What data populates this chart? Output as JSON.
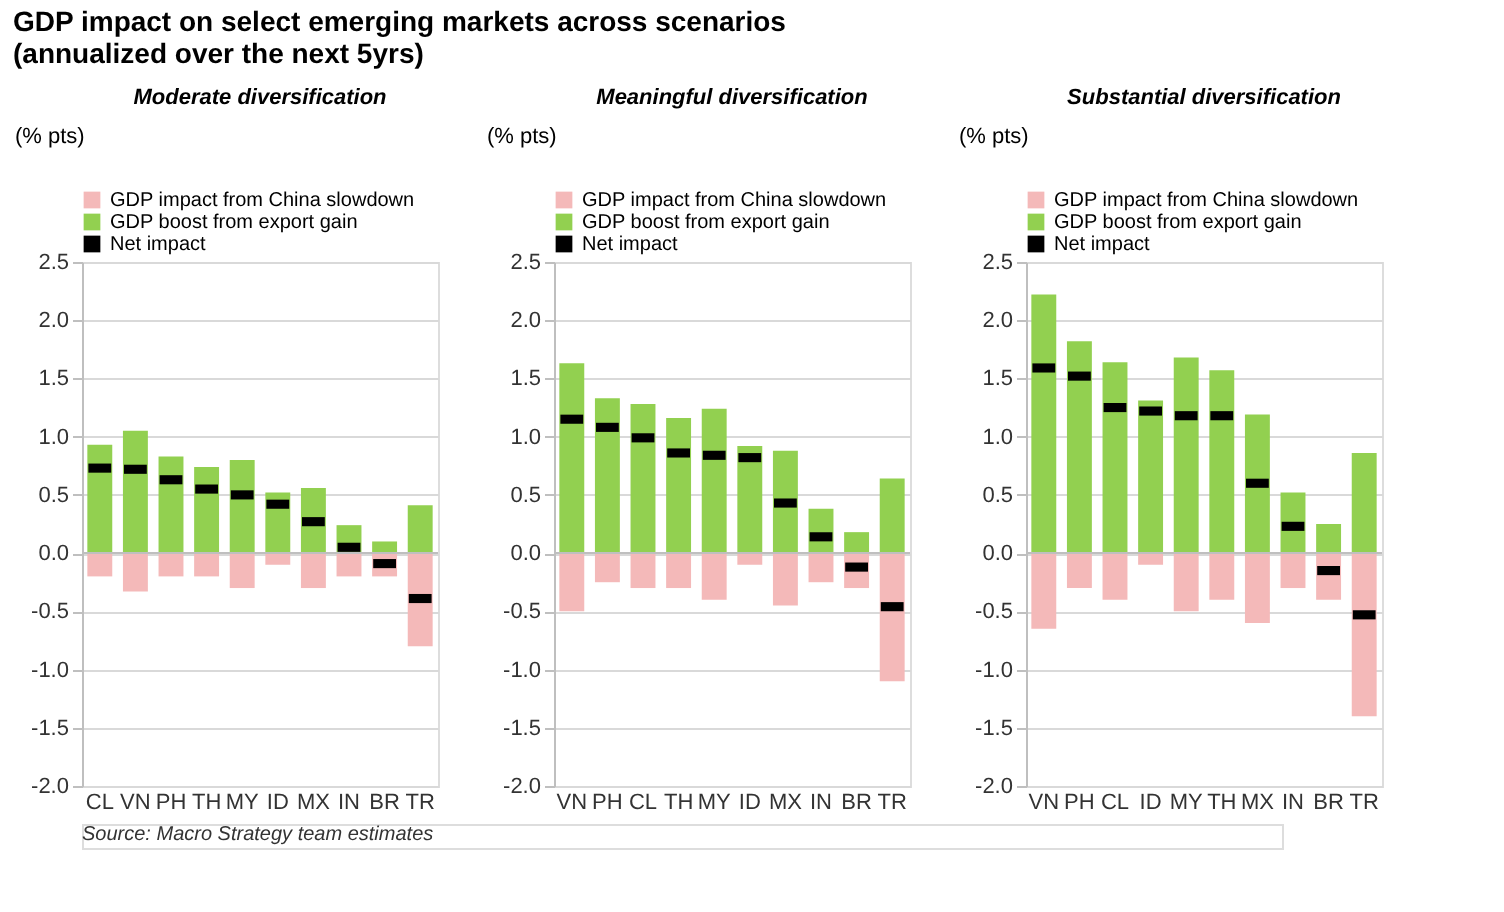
{
  "chart_data": [
    {
      "type": "bar",
      "title": "GDP impact on select emerging markets across scenarios\n(annualized over the next 5yrs)",
      "subtitle": "Moderate diversification",
      "ylabel": "(% pts)",
      "stacked": true,
      "legend": "top",
      "grid": "y",
      "categories": [
        "CL",
        "VN",
        "PH",
        "TH",
        "MY",
        "ID",
        "MX",
        "IN",
        "BR",
        "TR"
      ],
      "ylim": [
        -2.0,
        2.5
      ],
      "yticks": [
        {
          "value": -2,
          "label": "-2.0"
        },
        {
          "value": -1.5,
          "label": "-1.5"
        },
        {
          "value": -1,
          "label": "-1.0"
        },
        {
          "value": -0.5,
          "label": "-0.5"
        },
        {
          "value": 0,
          "label": "0.0"
        },
        {
          "value": 0.5,
          "label": "0.5"
        },
        {
          "value": 1,
          "label": "1.0"
        },
        {
          "value": 1.5,
          "label": "1.5"
        },
        {
          "value": 2,
          "label": "2.0"
        },
        {
          "value": 2.5,
          "label": "2.5"
        }
      ],
      "series": [
        {
          "name": "GDP impact from China slowdown",
          "color": "#f4b9b9",
          "values": [
            -0.2,
            -0.33,
            -0.2,
            -0.2,
            -0.3,
            -0.1,
            -0.3,
            -0.2,
            -0.2,
            -0.8
          ]
        },
        {
          "name": "GDP boost from export gain",
          "color": "#92d050",
          "values": [
            0.93,
            1.05,
            0.83,
            0.74,
            0.8,
            0.52,
            0.56,
            0.24,
            0.1,
            0.41
          ]
        },
        {
          "name": "Net impact",
          "type": "scatter",
          "color": "#000000",
          "values": [
            0.73,
            0.72,
            0.63,
            0.55,
            0.5,
            0.42,
            0.27,
            0.05,
            -0.09,
            -0.39
          ]
        }
      ],
      "annotations": [
        "Source: Macro Strategy team estimates"
      ]
    },
    {
      "type": "bar",
      "subtitle": "Meaningful diversification",
      "ylabel": "(% pts)",
      "stacked": true,
      "legend": "top",
      "grid": "y",
      "categories": [
        "VN",
        "PH",
        "CL",
        "TH",
        "MY",
        "ID",
        "MX",
        "IN",
        "BR",
        "TR"
      ],
      "ylim": [
        -2.0,
        2.5
      ],
      "yticks": [
        {
          "value": -2,
          "label": "-2.0"
        },
        {
          "value": -1.5,
          "label": "-1.5"
        },
        {
          "value": -1,
          "label": "-1.0"
        },
        {
          "value": -0.5,
          "label": "-0.5"
        },
        {
          "value": 0,
          "label": "0.0"
        },
        {
          "value": 0.5,
          "label": "0.5"
        },
        {
          "value": 1,
          "label": "1.0"
        },
        {
          "value": 1.5,
          "label": "1.5"
        },
        {
          "value": 2,
          "label": "2.0"
        },
        {
          "value": 2.5,
          "label": "2.5"
        }
      ],
      "series": [
        {
          "name": "GDP impact from China slowdown",
          "color": "#f4b9b9",
          "values": [
            -0.5,
            -0.25,
            -0.3,
            -0.3,
            -0.4,
            -0.1,
            -0.45,
            -0.25,
            -0.3,
            -1.1
          ]
        },
        {
          "name": "GDP boost from export gain",
          "color": "#92d050",
          "values": [
            1.63,
            1.33,
            1.28,
            1.16,
            1.24,
            0.92,
            0.88,
            0.38,
            0.18,
            0.64
          ]
        },
        {
          "name": "Net impact",
          "type": "scatter",
          "color": "#000000",
          "values": [
            1.15,
            1.08,
            0.99,
            0.86,
            0.84,
            0.82,
            0.43,
            0.14,
            -0.12,
            -0.46
          ]
        }
      ]
    },
    {
      "type": "bar",
      "subtitle": "Substantial diversification",
      "ylabel": "(% pts)",
      "stacked": true,
      "legend": "top",
      "grid": "y",
      "categories": [
        "VN",
        "PH",
        "CL",
        "ID",
        "MY",
        "TH",
        "MX",
        "IN",
        "BR",
        "TR"
      ],
      "ylim": [
        -2.0,
        2.5
      ],
      "yticks": [
        {
          "value": -2,
          "label": "-2.0"
        },
        {
          "value": -1.5,
          "label": "-1.5"
        },
        {
          "value": -1,
          "label": "-1.0"
        },
        {
          "value": -0.5,
          "label": "-0.5"
        },
        {
          "value": 0,
          "label": "0.0"
        },
        {
          "value": 0.5,
          "label": "0.5"
        },
        {
          "value": 1,
          "label": "1.0"
        },
        {
          "value": 1.5,
          "label": "1.5"
        },
        {
          "value": 2,
          "label": "2.0"
        },
        {
          "value": 2.5,
          "label": "2.5"
        }
      ],
      "series": [
        {
          "name": "GDP impact from China slowdown",
          "color": "#f4b9b9",
          "values": [
            -0.65,
            -0.3,
            -0.4,
            -0.1,
            -0.5,
            -0.4,
            -0.6,
            -0.3,
            -0.4,
            -1.4
          ]
        },
        {
          "name": "GDP boost from export gain",
          "color": "#92d050",
          "values": [
            2.22,
            1.82,
            1.64,
            1.31,
            1.68,
            1.57,
            1.19,
            0.52,
            0.25,
            0.86
          ]
        },
        {
          "name": "Net impact",
          "type": "scatter",
          "color": "#000000",
          "values": [
            1.59,
            1.52,
            1.25,
            1.22,
            1.18,
            1.18,
            0.6,
            0.23,
            -0.15,
            -0.53
          ]
        }
      ]
    }
  ]
}
